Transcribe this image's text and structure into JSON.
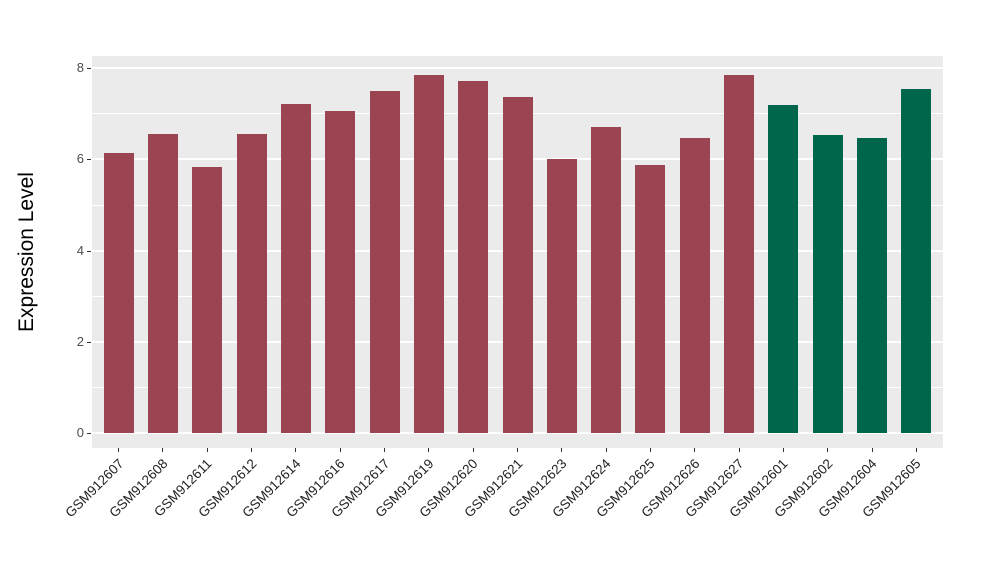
{
  "chart_data": {
    "type": "bar",
    "title": "",
    "xlabel": "",
    "ylabel": "Expression Level",
    "ylim": [
      0,
      8.3
    ],
    "yticks_major": [
      0,
      2,
      4,
      6,
      8
    ],
    "yticks_minor": [
      1,
      3,
      5,
      7
    ],
    "grid": "on",
    "legend": "none",
    "panel_bg": "#EBEBEB",
    "grid_color": "#FFFFFF",
    "categories": [
      "GSM912607",
      "GSM912608",
      "GSM912611",
      "GSM912612",
      "GSM912614",
      "GSM912616",
      "GSM912617",
      "GSM912619",
      "GSM912620",
      "GSM912621",
      "GSM912623",
      "GSM912624",
      "GSM912625",
      "GSM912626",
      "GSM912627",
      "GSM912601",
      "GSM912602",
      "GSM912604",
      "GSM912605"
    ],
    "values": [
      6.13,
      6.56,
      5.83,
      6.56,
      7.22,
      7.06,
      7.5,
      7.86,
      7.72,
      7.36,
      6.0,
      6.7,
      5.88,
      6.48,
      7.84,
      7.2,
      6.54,
      6.46,
      7.54
    ],
    "bar_color_keys": [
      "maroon",
      "maroon",
      "maroon",
      "maroon",
      "maroon",
      "maroon",
      "maroon",
      "maroon",
      "maroon",
      "maroon",
      "maroon",
      "maroon",
      "maroon",
      "maroon",
      "maroon",
      "green",
      "green",
      "green",
      "green"
    ],
    "colors": {
      "maroon": "#9B4452",
      "green": "#00664B"
    }
  }
}
